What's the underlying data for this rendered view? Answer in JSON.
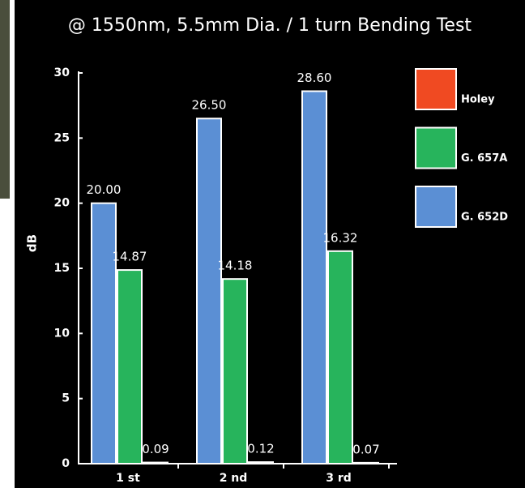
{
  "chart_data": {
    "type": "bar",
    "title": "@ 1550nm, 5.5mm Dia. / 1 turn Bending Test",
    "y_label": "dB",
    "categories": [
      "1 st",
      "2 nd",
      "3 rd"
    ],
    "series": [
      {
        "name": "G. 652D",
        "color": "#5b8fd4",
        "values": [
          20.0,
          26.5,
          28.6
        ],
        "value_labels": [
          "20.00",
          "26.50",
          "28.60"
        ]
      },
      {
        "name": "G. 657A",
        "color": "#27b45c",
        "values": [
          14.87,
          14.18,
          16.32
        ],
        "value_labels": [
          "14.87",
          "14.18",
          "16.32"
        ]
      },
      {
        "name": "Holey",
        "color": "#f04a22",
        "values": [
          0.09,
          0.12,
          0.07
        ],
        "value_labels": [
          "0.09",
          "0.12",
          "0.07"
        ]
      }
    ],
    "ylim": [
      0,
      30
    ],
    "yticks": [
      0,
      5,
      10,
      15,
      20,
      25,
      30
    ]
  }
}
